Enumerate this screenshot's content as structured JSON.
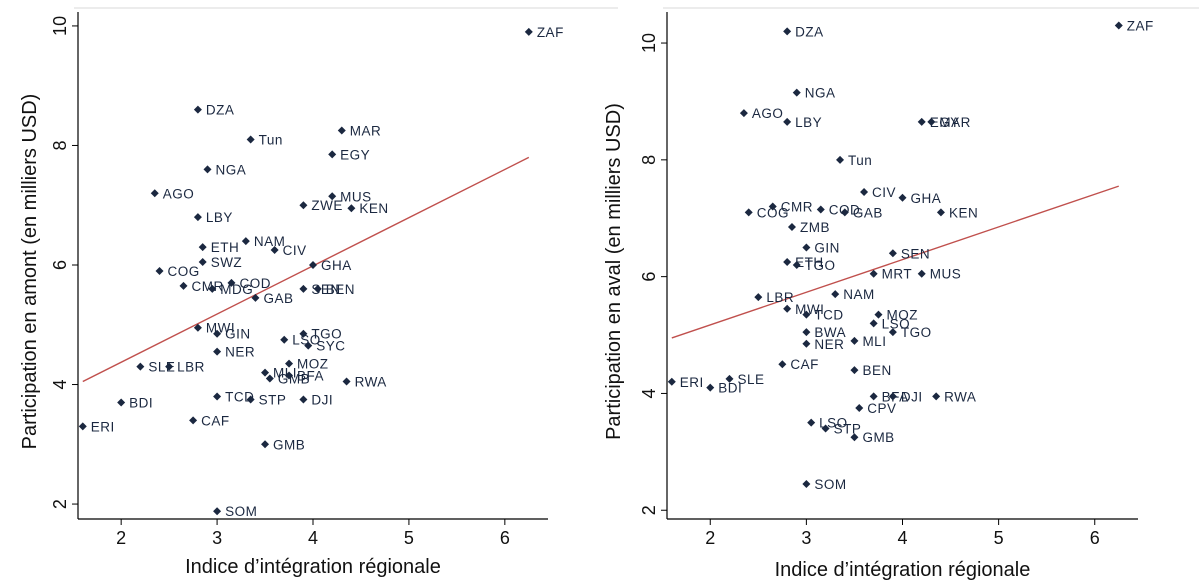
{
  "chart_data": [
    {
      "type": "scatter",
      "title": "",
      "xlabel": "Indice d’intégration régionale",
      "ylabel": "Participation en amont (en milliers USD)",
      "xlim": [
        1.55,
        6.45
      ],
      "ylim": [
        1.75,
        10.3
      ],
      "xticks": [
        "2",
        "3",
        "4",
        "5",
        "6"
      ],
      "yticks": [
        "2",
        "4",
        "6",
        "8",
        "10"
      ],
      "grid": false,
      "fit_line": {
        "color": "#c0504d",
        "x": [
          1.6,
          6.25
        ],
        "y": [
          4.05,
          7.8
        ]
      },
      "points": [
        {
          "label": "ZAF",
          "x": 6.25,
          "y": 9.9
        },
        {
          "label": "DZA",
          "x": 2.8,
          "y": 8.6
        },
        {
          "label": "Tun",
          "x": 3.35,
          "y": 8.1
        },
        {
          "label": "MAR",
          "x": 4.3,
          "y": 8.25
        },
        {
          "label": "EGY",
          "x": 4.2,
          "y": 7.85
        },
        {
          "label": "NGA",
          "x": 2.9,
          "y": 7.6
        },
        {
          "label": "AGO",
          "x": 2.35,
          "y": 7.2
        },
        {
          "label": "MUS",
          "x": 4.2,
          "y": 7.15
        },
        {
          "label": "ZWE",
          "x": 3.9,
          "y": 7.0
        },
        {
          "label": "KEN",
          "x": 4.4,
          "y": 6.95
        },
        {
          "label": "LBY",
          "x": 2.8,
          "y": 6.8
        },
        {
          "label": "NAM",
          "x": 3.3,
          "y": 6.4
        },
        {
          "label": "ETH",
          "x": 2.85,
          "y": 6.3
        },
        {
          "label": "CIV",
          "x": 3.6,
          "y": 6.25
        },
        {
          "label": "SWZ",
          "x": 2.85,
          "y": 6.05
        },
        {
          "label": "GHA",
          "x": 4.0,
          "y": 6.0
        },
        {
          "label": "COG",
          "x": 2.4,
          "y": 5.9
        },
        {
          "label": "COD",
          "x": 3.15,
          "y": 5.7
        },
        {
          "label": "CMR",
          "x": 2.65,
          "y": 5.65
        },
        {
          "label": "MDG",
          "x": 2.95,
          "y": 5.6
        },
        {
          "label": "SEN",
          "x": 3.9,
          "y": 5.6
        },
        {
          "label": "BEN",
          "x": 4.05,
          "y": 5.6
        },
        {
          "label": "GAB",
          "x": 3.4,
          "y": 5.45
        },
        {
          "label": "MWI",
          "x": 2.8,
          "y": 4.95
        },
        {
          "label": "GIN",
          "x": 3.0,
          "y": 4.85
        },
        {
          "label": "TGO",
          "x": 3.9,
          "y": 4.85
        },
        {
          "label": "LSO",
          "x": 3.7,
          "y": 4.75
        },
        {
          "label": "SYC",
          "x": 3.95,
          "y": 4.65
        },
        {
          "label": "NER",
          "x": 3.0,
          "y": 4.55
        },
        {
          "label": "LBR",
          "x": 2.5,
          "y": 4.3
        },
        {
          "label": "SLE",
          "x": 2.2,
          "y": 4.3
        },
        {
          "label": "MOZ",
          "x": 3.75,
          "y": 4.35
        },
        {
          "label": "MLI",
          "x": 3.5,
          "y": 4.2
        },
        {
          "label": "BFA",
          "x": 3.75,
          "y": 4.15
        },
        {
          "label": "GMB2",
          "x": 3.55,
          "y": 4.1
        },
        {
          "label": "RWA",
          "x": 4.35,
          "y": 4.05
        },
        {
          "label": "BDI",
          "x": 2.0,
          "y": 3.7
        },
        {
          "label": "TCD",
          "x": 3.0,
          "y": 3.8
        },
        {
          "label": "STP",
          "x": 3.35,
          "y": 3.75
        },
        {
          "label": "DJI",
          "x": 3.9,
          "y": 3.75
        },
        {
          "label": "ERI",
          "x": 1.6,
          "y": 3.3
        },
        {
          "label": "CAF",
          "x": 2.75,
          "y": 3.4
        },
        {
          "label": "GMB",
          "x": 3.5,
          "y": 3.0
        },
        {
          "label": "SOM",
          "x": 3.0,
          "y": 1.88
        }
      ]
    },
    {
      "type": "scatter",
      "title": "",
      "xlabel": "Indice d’intégration régionale",
      "ylabel": "Participation en aval (en milliers USD)",
      "xlim": [
        1.55,
        6.45
      ],
      "ylim": [
        1.85,
        10.6
      ],
      "xticks": [
        "2",
        "3",
        "4",
        "5",
        "6"
      ],
      "yticks": [
        "2",
        "4",
        "6",
        "8",
        "10"
      ],
      "grid": false,
      "fit_line": {
        "color": "#c0504d",
        "x": [
          1.6,
          6.25
        ],
        "y": [
          4.95,
          7.55
        ]
      },
      "points": [
        {
          "label": "ZAF",
          "x": 6.25,
          "y": 10.3
        },
        {
          "label": "DZA",
          "x": 2.8,
          "y": 10.2
        },
        {
          "label": "NGA",
          "x": 2.9,
          "y": 9.15
        },
        {
          "label": "AGO",
          "x": 2.35,
          "y": 8.8
        },
        {
          "label": "LBY",
          "x": 2.8,
          "y": 8.65
        },
        {
          "label": "EGY",
          "x": 4.2,
          "y": 8.65
        },
        {
          "label": "MAR",
          "x": 4.3,
          "y": 8.65
        },
        {
          "label": "Tun",
          "x": 3.35,
          "y": 8.0
        },
        {
          "label": "CIV",
          "x": 3.6,
          "y": 7.45
        },
        {
          "label": "GHA",
          "x": 4.0,
          "y": 7.35
        },
        {
          "label": "CMR",
          "x": 2.65,
          "y": 7.2
        },
        {
          "label": "COG",
          "x": 2.4,
          "y": 7.1
        },
        {
          "label": "COD",
          "x": 3.15,
          "y": 7.15
        },
        {
          "label": "GAB",
          "x": 3.4,
          "y": 7.1
        },
        {
          "label": "KEN",
          "x": 4.4,
          "y": 7.1
        },
        {
          "label": "ZMB",
          "x": 2.85,
          "y": 6.85
        },
        {
          "label": "GIN",
          "x": 3.0,
          "y": 6.5
        },
        {
          "label": "SEN",
          "x": 3.9,
          "y": 6.4
        },
        {
          "label": "ETH",
          "x": 2.8,
          "y": 6.25
        },
        {
          "label": "TGO2",
          "x": 2.9,
          "y": 6.2
        },
        {
          "label": "MRT",
          "x": 3.7,
          "y": 6.05
        },
        {
          "label": "MUS",
          "x": 4.2,
          "y": 6.05
        },
        {
          "label": "NAM",
          "x": 3.3,
          "y": 5.7
        },
        {
          "label": "LBR",
          "x": 2.5,
          "y": 5.65
        },
        {
          "label": "MWI",
          "x": 2.8,
          "y": 5.45
        },
        {
          "label": "TCD",
          "x": 3.0,
          "y": 5.35
        },
        {
          "label": "MOZ",
          "x": 3.75,
          "y": 5.35
        },
        {
          "label": "LSO2",
          "x": 3.7,
          "y": 5.2
        },
        {
          "label": "TGO",
          "x": 3.9,
          "y": 5.05
        },
        {
          "label": "BWA",
          "x": 3.0,
          "y": 5.05
        },
        {
          "label": "MLI",
          "x": 3.5,
          "y": 4.9
        },
        {
          "label": "NER",
          "x": 3.0,
          "y": 4.85
        },
        {
          "label": "CAF",
          "x": 2.75,
          "y": 4.5
        },
        {
          "label": "BEN",
          "x": 3.5,
          "y": 4.4
        },
        {
          "label": "ERI",
          "x": 1.6,
          "y": 4.2
        },
        {
          "label": "BDI",
          "x": 2.0,
          "y": 4.1
        },
        {
          "label": "SLE",
          "x": 2.2,
          "y": 4.25
        },
        {
          "label": "BFA",
          "x": 3.7,
          "y": 3.95
        },
        {
          "label": "DJI",
          "x": 3.9,
          "y": 3.95
        },
        {
          "label": "RWA",
          "x": 4.35,
          "y": 3.95
        },
        {
          "label": "CPV",
          "x": 3.55,
          "y": 3.75
        },
        {
          "label": "LSO",
          "x": 3.05,
          "y": 3.5
        },
        {
          "label": "STP",
          "x": 3.2,
          "y": 3.4
        },
        {
          "label": "GMB",
          "x": 3.5,
          "y": 3.25
        },
        {
          "label": "SOM",
          "x": 3.0,
          "y": 2.45
        }
      ]
    }
  ]
}
